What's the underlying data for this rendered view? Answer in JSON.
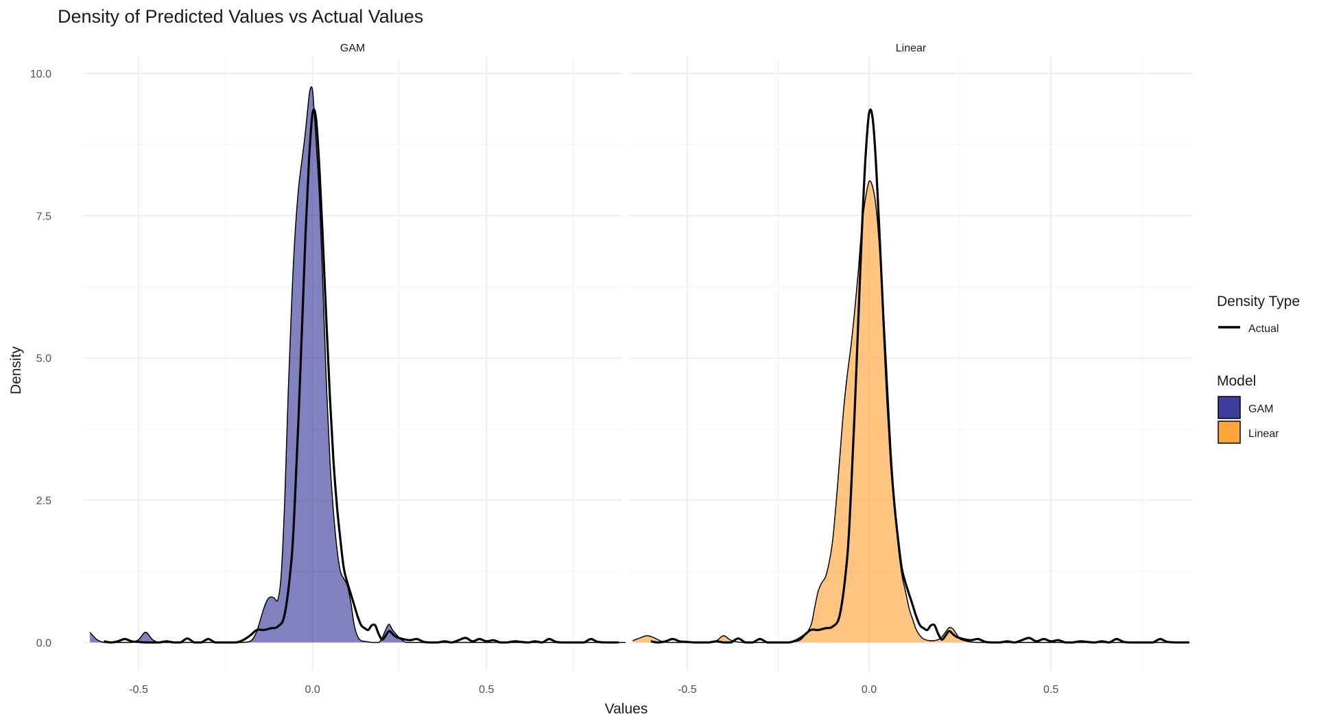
{
  "chart_data": {
    "type": "area",
    "title": "Density of Predicted Values vs Actual Values",
    "xlabel": "Values",
    "ylabel": "Density",
    "xlim": [
      -0.66,
      0.89
    ],
    "ylim": [
      -0.5,
      10.3
    ],
    "x_ticks": [
      -0.5,
      0.0,
      0.5
    ],
    "x_tick_labels": [
      "-0.5",
      "0.0",
      "0.5"
    ],
    "y_ticks": [
      0,
      2.5,
      5,
      7.5,
      10
    ],
    "y_tick_labels": [
      "0.0",
      "2.5",
      "5.0",
      "7.5",
      "10.0"
    ],
    "grid": true,
    "legend_position": "right",
    "facets": [
      {
        "label": "GAM",
        "fill_color": "#3D3D9E",
        "predicted": {
          "x": [
            -0.64,
            -0.62,
            -0.6,
            -0.58,
            -0.56,
            -0.54,
            -0.52,
            -0.5,
            -0.48,
            -0.46,
            -0.44,
            -0.4,
            -0.37,
            -0.35,
            -0.33,
            -0.31,
            -0.29,
            -0.27,
            -0.25,
            -0.22,
            -0.2,
            -0.18,
            -0.17,
            -0.16,
            -0.15,
            -0.14,
            -0.13,
            -0.12,
            -0.11,
            -0.1,
            -0.09,
            -0.08,
            -0.07,
            -0.06,
            -0.05,
            -0.04,
            -0.03,
            -0.02,
            -0.01,
            -0.005,
            0.0,
            0.005,
            0.01,
            0.02,
            0.03,
            0.04,
            0.05,
            0.06,
            0.07,
            0.08,
            0.09,
            0.1,
            0.11,
            0.12,
            0.13,
            0.14,
            0.15,
            0.17,
            0.19,
            0.2,
            0.21,
            0.22,
            0.23,
            0.25,
            0.27,
            0.3,
            0.35,
            0.4,
            0.45,
            0.5,
            0.6,
            0.7,
            0.8,
            0.9
          ],
          "y": [
            0.18,
            0.05,
            0.0,
            0.0,
            0.0,
            0.0,
            0.0,
            0.05,
            0.18,
            0.05,
            0.0,
            0.0,
            0.0,
            0.0,
            0.0,
            0.0,
            0.0,
            0.0,
            0.0,
            0.0,
            0.0,
            0.02,
            0.08,
            0.2,
            0.4,
            0.6,
            0.75,
            0.8,
            0.78,
            0.75,
            1.2,
            2.5,
            4.4,
            6.0,
            7.2,
            8.0,
            8.5,
            9.0,
            9.6,
            9.75,
            9.7,
            9.3,
            8.8,
            7.8,
            6.2,
            4.5,
            3.2,
            2.3,
            1.65,
            1.25,
            1.12,
            1.0,
            0.7,
            0.3,
            0.1,
            0.03,
            0.02,
            0.0,
            0.0,
            0.08,
            0.22,
            0.32,
            0.22,
            0.08,
            0.0,
            0.0,
            0.0,
            0.0,
            0.0,
            0.0,
            0.0,
            0.0,
            0.0,
            0.0
          ]
        },
        "actual": {
          "x": [
            -0.6,
            -0.58,
            -0.56,
            -0.54,
            -0.52,
            -0.5,
            -0.48,
            -0.46,
            -0.44,
            -0.42,
            -0.4,
            -0.38,
            -0.36,
            -0.34,
            -0.32,
            -0.3,
            -0.28,
            -0.26,
            -0.24,
            -0.22,
            -0.2,
            -0.18,
            -0.16,
            -0.14,
            -0.12,
            -0.1,
            -0.08,
            -0.06,
            -0.05,
            -0.04,
            -0.03,
            -0.02,
            -0.01,
            0.0,
            0.01,
            0.02,
            0.03,
            0.04,
            0.05,
            0.06,
            0.07,
            0.08,
            0.09,
            0.1,
            0.11,
            0.12,
            0.13,
            0.14,
            0.15,
            0.16,
            0.17,
            0.18,
            0.19,
            0.2,
            0.21,
            0.22,
            0.23,
            0.24,
            0.26,
            0.28,
            0.3,
            0.32,
            0.34,
            0.36,
            0.38,
            0.4,
            0.42,
            0.44,
            0.46,
            0.48,
            0.5,
            0.52,
            0.54,
            0.56,
            0.58,
            0.6,
            0.62,
            0.64,
            0.66,
            0.68,
            0.7,
            0.72,
            0.74,
            0.76,
            0.78,
            0.8,
            0.82,
            0.85,
            0.88
          ],
          "y": [
            0.02,
            0.0,
            0.02,
            0.06,
            0.02,
            0.01,
            0.0,
            0.0,
            0.0,
            0.02,
            0.0,
            0.0,
            0.07,
            0.0,
            0.0,
            0.06,
            0.0,
            0.0,
            0.0,
            0.0,
            0.04,
            0.12,
            0.22,
            0.22,
            0.25,
            0.28,
            0.5,
            1.5,
            2.6,
            4.0,
            5.6,
            7.2,
            8.5,
            9.3,
            9.2,
            8.3,
            7.0,
            5.6,
            4.3,
            3.2,
            2.4,
            1.8,
            1.3,
            1.05,
            0.85,
            0.65,
            0.45,
            0.3,
            0.25,
            0.22,
            0.3,
            0.3,
            0.15,
            0.05,
            0.12,
            0.2,
            0.15,
            0.1,
            0.06,
            0.04,
            0.06,
            0.01,
            0.0,
            0.0,
            0.02,
            0.0,
            0.04,
            0.08,
            0.02,
            0.06,
            0.02,
            0.04,
            0.0,
            0.0,
            0.02,
            0.01,
            0.0,
            0.02,
            0.0,
            0.06,
            0.01,
            0.0,
            0.0,
            0.0,
            0.0,
            0.06,
            0.01,
            0.0,
            0.0
          ]
        }
      },
      {
        "label": "Linear",
        "fill_color": "#FFA53B",
        "predicted": {
          "x": [
            -0.65,
            -0.63,
            -0.61,
            -0.59,
            -0.57,
            -0.55,
            -0.5,
            -0.45,
            -0.42,
            -0.4,
            -0.38,
            -0.35,
            -0.3,
            -0.25,
            -0.2,
            -0.18,
            -0.16,
            -0.15,
            -0.14,
            -0.13,
            -0.12,
            -0.11,
            -0.1,
            -0.09,
            -0.08,
            -0.07,
            -0.06,
            -0.05,
            -0.04,
            -0.03,
            -0.02,
            -0.01,
            0.0,
            0.01,
            0.02,
            0.03,
            0.04,
            0.05,
            0.06,
            0.07,
            0.08,
            0.09,
            0.1,
            0.11,
            0.12,
            0.13,
            0.14,
            0.15,
            0.17,
            0.19,
            0.2,
            0.21,
            0.22,
            0.23,
            0.24,
            0.25,
            0.27,
            0.3,
            0.4,
            0.5,
            0.6,
            0.7,
            0.8,
            0.88
          ],
          "y": [
            0.03,
            0.08,
            0.12,
            0.08,
            0.02,
            0.0,
            0.0,
            0.0,
            0.03,
            0.12,
            0.04,
            0.0,
            0.0,
            0.0,
            0.02,
            0.1,
            0.3,
            0.6,
            0.9,
            1.05,
            1.15,
            1.4,
            1.8,
            2.5,
            3.3,
            4.1,
            4.7,
            5.2,
            5.8,
            6.5,
            7.3,
            7.8,
            8.1,
            8.0,
            7.6,
            6.8,
            5.8,
            4.6,
            3.4,
            2.4,
            1.7,
            1.2,
            0.9,
            0.6,
            0.4,
            0.22,
            0.12,
            0.06,
            0.03,
            0.05,
            0.1,
            0.18,
            0.26,
            0.24,
            0.15,
            0.06,
            0.02,
            0.0,
            0.0,
            0.0,
            0.0,
            0.0,
            0.0,
            0.0
          ]
        },
        "actual": {
          "x": [
            -0.6,
            -0.58,
            -0.56,
            -0.54,
            -0.52,
            -0.5,
            -0.48,
            -0.46,
            -0.44,
            -0.42,
            -0.4,
            -0.38,
            -0.36,
            -0.34,
            -0.32,
            -0.3,
            -0.28,
            -0.26,
            -0.24,
            -0.22,
            -0.2,
            -0.18,
            -0.16,
            -0.14,
            -0.12,
            -0.1,
            -0.08,
            -0.06,
            -0.05,
            -0.04,
            -0.03,
            -0.02,
            -0.01,
            0.0,
            0.01,
            0.02,
            0.03,
            0.04,
            0.05,
            0.06,
            0.07,
            0.08,
            0.09,
            0.1,
            0.11,
            0.12,
            0.13,
            0.14,
            0.15,
            0.16,
            0.17,
            0.18,
            0.19,
            0.2,
            0.21,
            0.22,
            0.23,
            0.24,
            0.26,
            0.28,
            0.3,
            0.32,
            0.34,
            0.36,
            0.38,
            0.4,
            0.42,
            0.44,
            0.46,
            0.48,
            0.5,
            0.52,
            0.54,
            0.56,
            0.58,
            0.6,
            0.62,
            0.64,
            0.66,
            0.68,
            0.7,
            0.72,
            0.74,
            0.76,
            0.78,
            0.8,
            0.82,
            0.85,
            0.88
          ],
          "y": [
            0.02,
            0.0,
            0.02,
            0.06,
            0.02,
            0.01,
            0.0,
            0.0,
            0.0,
            0.02,
            0.0,
            0.0,
            0.07,
            0.0,
            0.0,
            0.06,
            0.0,
            0.0,
            0.0,
            0.0,
            0.04,
            0.12,
            0.22,
            0.22,
            0.25,
            0.28,
            0.5,
            1.5,
            2.6,
            4.0,
            5.6,
            7.2,
            8.5,
            9.3,
            9.2,
            8.3,
            7.0,
            5.6,
            4.3,
            3.2,
            2.4,
            1.8,
            1.3,
            1.05,
            0.85,
            0.65,
            0.45,
            0.3,
            0.25,
            0.22,
            0.3,
            0.3,
            0.15,
            0.05,
            0.12,
            0.2,
            0.15,
            0.1,
            0.06,
            0.04,
            0.06,
            0.01,
            0.0,
            0.0,
            0.02,
            0.0,
            0.04,
            0.08,
            0.02,
            0.06,
            0.02,
            0.04,
            0.0,
            0.0,
            0.02,
            0.01,
            0.0,
            0.02,
            0.0,
            0.06,
            0.01,
            0.0,
            0.0,
            0.0,
            0.0,
            0.06,
            0.01,
            0.0,
            0.0
          ]
        }
      }
    ],
    "legend": {
      "line_title": "Density Type",
      "line_entries": [
        {
          "label": "Actual",
          "color": "#000000"
        }
      ],
      "fill_title": "Model",
      "fill_entries": [
        {
          "label": "GAM",
          "color": "#3D3D9E"
        },
        {
          "label": "Linear",
          "color": "#FFA53B"
        }
      ]
    }
  }
}
